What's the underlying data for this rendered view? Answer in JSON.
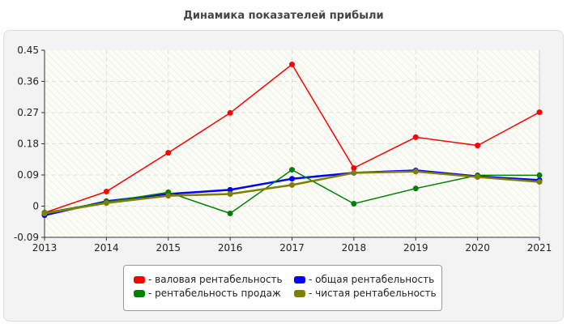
{
  "chart_data": {
    "type": "line",
    "title": "Динамика показателей прибыли",
    "x": [
      2013,
      2014,
      2015,
      2016,
      2017,
      2018,
      2019,
      2020,
      2021
    ],
    "ylim": [
      -0.09,
      0.45
    ],
    "yticks": [
      -0.09,
      0,
      0.09,
      0.18,
      0.27,
      0.36,
      0.45
    ],
    "ytick_labels": [
      "-0.09",
      "0",
      "0.09",
      "0.18",
      "0.27",
      "0.36",
      "0.45"
    ],
    "grid": true,
    "legend_position": "bottom",
    "series": [
      {
        "name": "- валовая рентабельность",
        "color": "#ff0000",
        "values": [
          -0.019,
          0.042,
          0.154,
          0.269,
          0.409,
          0.11,
          0.199,
          0.175,
          0.271
        ]
      },
      {
        "name": "- общая рентабельность",
        "color": "#0000ff",
        "values": [
          -0.026,
          0.014,
          0.035,
          0.047,
          0.079,
          0.096,
          0.103,
          0.086,
          0.075
        ]
      },
      {
        "name": "- рентабельность продаж",
        "color": "#008000",
        "values": [
          -0.019,
          0.012,
          0.04,
          -0.021,
          0.105,
          0.007,
          0.051,
          0.089,
          0.089
        ]
      },
      {
        "name": "- чистая рентабельность",
        "color": "#808000",
        "values": [
          -0.021,
          0.009,
          0.03,
          0.035,
          0.061,
          0.096,
          0.1,
          0.084,
          0.07
        ]
      }
    ]
  }
}
